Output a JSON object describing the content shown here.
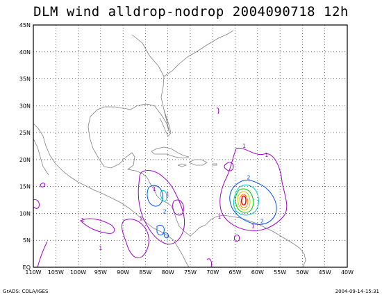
{
  "title": "DLM wind alldrop-nodrop 2004090718 12h",
  "footer": {
    "left": "GrADS: COLA/IGES",
    "right": "2004-09-14-15:31"
  },
  "map": {
    "lat_labels": [
      "EQ",
      "5N",
      "10N",
      "15N",
      "20N",
      "25N",
      "30N",
      "35N",
      "40N",
      "45N"
    ],
    "lon_labels": [
      "110W",
      "105W",
      "100W",
      "95W",
      "90W",
      "85W",
      "80W",
      "75W",
      "70W",
      "65W",
      "60W",
      "55W",
      "50W",
      "45W",
      "40W"
    ],
    "lon_range": [
      -110,
      -40
    ],
    "lat_range": [
      0,
      45
    ],
    "grid": "dotted",
    "colors": {
      "coast": "#808080",
      "c1": "#a000c8",
      "c2": "#0050ff",
      "c3": "#00c8c8",
      "c4": "#00c800",
      "c5": "#c8c800",
      "c6": "#ff8000",
      "c7": "#ff0000"
    }
  },
  "contour_labels": [
    {
      "text": "1",
      "color": "#a000c8",
      "lon": -63,
      "lat": 22.2
    },
    {
      "text": "1",
      "color": "#a000c8",
      "lon": -58,
      "lat": 20.5
    },
    {
      "text": "1",
      "color": "#a000c8",
      "lon": -83,
      "lat": 14.2
    },
    {
      "text": "1",
      "color": "#a000c8",
      "lon": -80,
      "lat": 13.2
    },
    {
      "text": "1",
      "color": "#a000c8",
      "lon": -99,
      "lat": 8.4
    },
    {
      "text": "1",
      "color": "#a000c8",
      "lon": -95,
      "lat": 3.2
    },
    {
      "text": "1",
      "color": "#a000c8",
      "lon": -86,
      "lat": 8.7
    },
    {
      "text": "1",
      "color": "#a000c8",
      "lon": -68.5,
      "lat": 9.0
    },
    {
      "text": "2",
      "color": "#0050ff",
      "lon": -80.7,
      "lat": 10.0
    },
    {
      "text": "2",
      "color": "#0050ff",
      "lon": -62,
      "lat": 16.3
    },
    {
      "text": "2",
      "color": "#0050ff",
      "lon": -59,
      "lat": 8.2
    },
    {
      "text": "1",
      "color": "#a000c8",
      "lon": -61,
      "lat": 7.3
    }
  ]
}
